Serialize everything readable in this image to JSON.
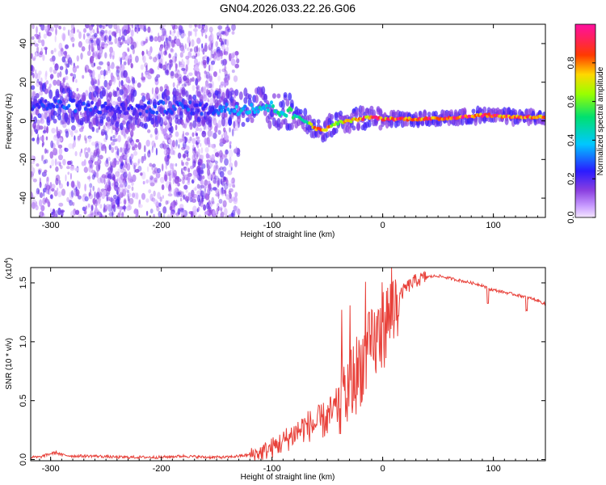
{
  "title": "GN04.2026.033.22.26.G06",
  "colors": {
    "snr_line": "#e8413a",
    "axis": "#000000",
    "spectrogram_scatter": "#8a3fe0",
    "ridge_cold": "#2a1bff",
    "ridge_hot": "#ff2020"
  },
  "chart_data": [
    {
      "type": "heatmap",
      "title": "GN04.2026.033.22.26.G06",
      "xlabel": "Height of straight line (km)",
      "ylabel": "Frequency (Hz)",
      "xlim": [
        -318,
        147
      ],
      "ylim": [
        -50,
        50
      ],
      "xticks": [
        "-300",
        "-200",
        "-100",
        "0",
        "100"
      ],
      "xtick_values": [
        -300,
        -200,
        -100,
        0,
        100
      ],
      "yticks": [
        "-40",
        "-20",
        "0",
        "20",
        "40"
      ],
      "ytick_values": [
        -40,
        -20,
        0,
        20,
        40
      ],
      "colorbar": {
        "label": "Normalized spectral amplitude",
        "range": [
          0,
          1
        ],
        "ticks": [
          "0.0",
          "0.2",
          "0.4",
          "0.6",
          "0.8"
        ],
        "tick_values": [
          0.0,
          0.2,
          0.4,
          0.6,
          0.8
        ],
        "colormap": "rainbow (magenta-blue-cyan-green-yellow-red-magenta)"
      },
      "ridge": {
        "x": [
          -318,
          -300,
          -280,
          -260,
          -240,
          -220,
          -200,
          -180,
          -160,
          -140,
          -120,
          -100,
          -90,
          -80,
          -70,
          -60,
          -55,
          -50,
          -45,
          -40,
          -30,
          -20,
          -10,
          0,
          20,
          50,
          90,
          120,
          147
        ],
        "y": [
          9,
          8,
          8,
          7,
          6,
          6,
          7,
          7,
          6,
          6,
          7,
          7,
          5,
          3,
          0,
          -4,
          -5,
          -4,
          -2,
          -1,
          0,
          1,
          2,
          1,
          1,
          1,
          3,
          2,
          2
        ],
        "amplitude": [
          0.25,
          0.28,
          0.3,
          0.25,
          0.22,
          0.24,
          0.3,
          0.3,
          0.25,
          0.35,
          0.45,
          0.45,
          0.5,
          0.55,
          0.55,
          0.85,
          0.9,
          0.85,
          0.75,
          0.7,
          0.8,
          0.85,
          0.9,
          0.9,
          0.92,
          0.95,
          0.95,
          0.9,
          0.9
        ]
      },
      "noise_region_x": [
        -318,
        -140
      ]
    },
    {
      "type": "line",
      "title": "",
      "xlabel": "Height of straight line (km)",
      "ylabel": "SNR (10 * v/v)",
      "yscale_label": "(x10^4)",
      "xlim": [
        -318,
        147
      ],
      "ylim": [
        -0.01,
        1.63
      ],
      "xticks": [
        "-300",
        "-200",
        "-100",
        "0",
        "100"
      ],
      "xtick_values": [
        -300,
        -200,
        -100,
        0,
        100
      ],
      "yticks": [
        "0.0",
        "0.5",
        "1.0",
        "1.5"
      ],
      "ytick_values": [
        0.0,
        0.5,
        1.0,
        1.5
      ],
      "series": [
        {
          "x": [
            -318,
            -310,
            -300,
            -295,
            -290,
            -280,
            -260,
            -240,
            -220,
            -200,
            -180,
            -160,
            -140,
            -130,
            -120,
            -110,
            -100,
            -90,
            -80,
            -70,
            -60,
            -50,
            -40,
            -30,
            -20,
            -10,
            0,
            10,
            20,
            30,
            40,
            50,
            60,
            70,
            80,
            90,
            95,
            100,
            110,
            120,
            130,
            140,
            147
          ],
          "y": [
            0.02,
            0.02,
            0.05,
            0.06,
            0.04,
            0.03,
            0.03,
            0.02,
            0.02,
            0.02,
            0.03,
            0.02,
            0.02,
            0.03,
            0.04,
            0.06,
            0.1,
            0.15,
            0.22,
            0.28,
            0.3,
            0.35,
            0.45,
            0.6,
            0.8,
            0.95,
            1.1,
            1.3,
            1.45,
            1.52,
            1.55,
            1.56,
            1.54,
            1.52,
            1.5,
            1.48,
            1.45,
            1.44,
            1.42,
            1.4,
            1.38,
            1.35,
            1.32
          ]
        }
      ]
    }
  ]
}
